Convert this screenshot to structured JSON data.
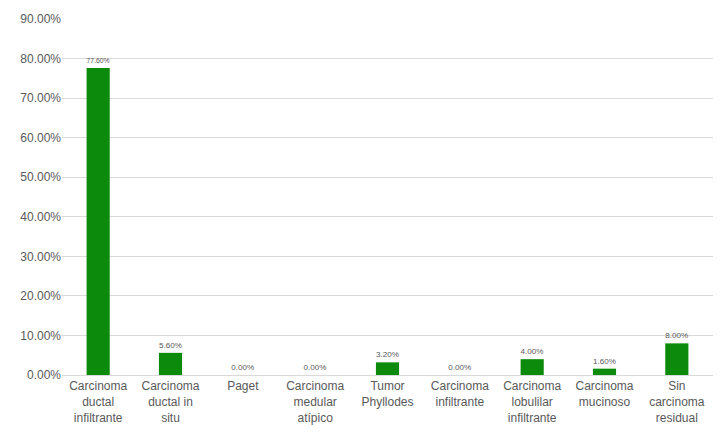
{
  "chart_data": {
    "type": "bar",
    "categories": [
      "Carcinoma ductal infiltrante",
      "Carcinoma ductal in situ",
      "Paget",
      "Carcinoma medular atípico",
      "Tumor Phyllodes",
      "Carcinoma infiltrante",
      "Carcinoma lobulilar infiltrante",
      "Carcinoma mucinoso",
      "Sin carcinoma residual"
    ],
    "values": [
      77.6,
      5.6,
      0,
      0,
      3.2,
      0,
      4.0,
      1.6,
      8.0
    ],
    "value_labels": [
      "77.60%",
      "5.60%",
      "0.00%",
      "0.00%",
      "3.20%",
      "0.00%",
      "4.00%",
      "1.60%",
      "8.00%"
    ],
    "color": "#0c8a0c",
    "ylim": [
      0,
      90
    ],
    "yticks": [
      {
        "value": 0,
        "label": "0.00%"
      },
      {
        "value": 10,
        "label": "10.00%"
      },
      {
        "value": 20,
        "label": "20.00%"
      },
      {
        "value": 30,
        "label": "30.00%"
      },
      {
        "value": 40,
        "label": "40.00%"
      },
      {
        "value": 50,
        "label": "50.00%"
      },
      {
        "value": 60,
        "label": "60.00%"
      },
      {
        "value": 70,
        "label": "70.00%"
      },
      {
        "value": 80,
        "label": "80.00%"
      },
      {
        "value": 90,
        "label": "90.00%"
      }
    ],
    "grid": true,
    "data_labels": true
  }
}
